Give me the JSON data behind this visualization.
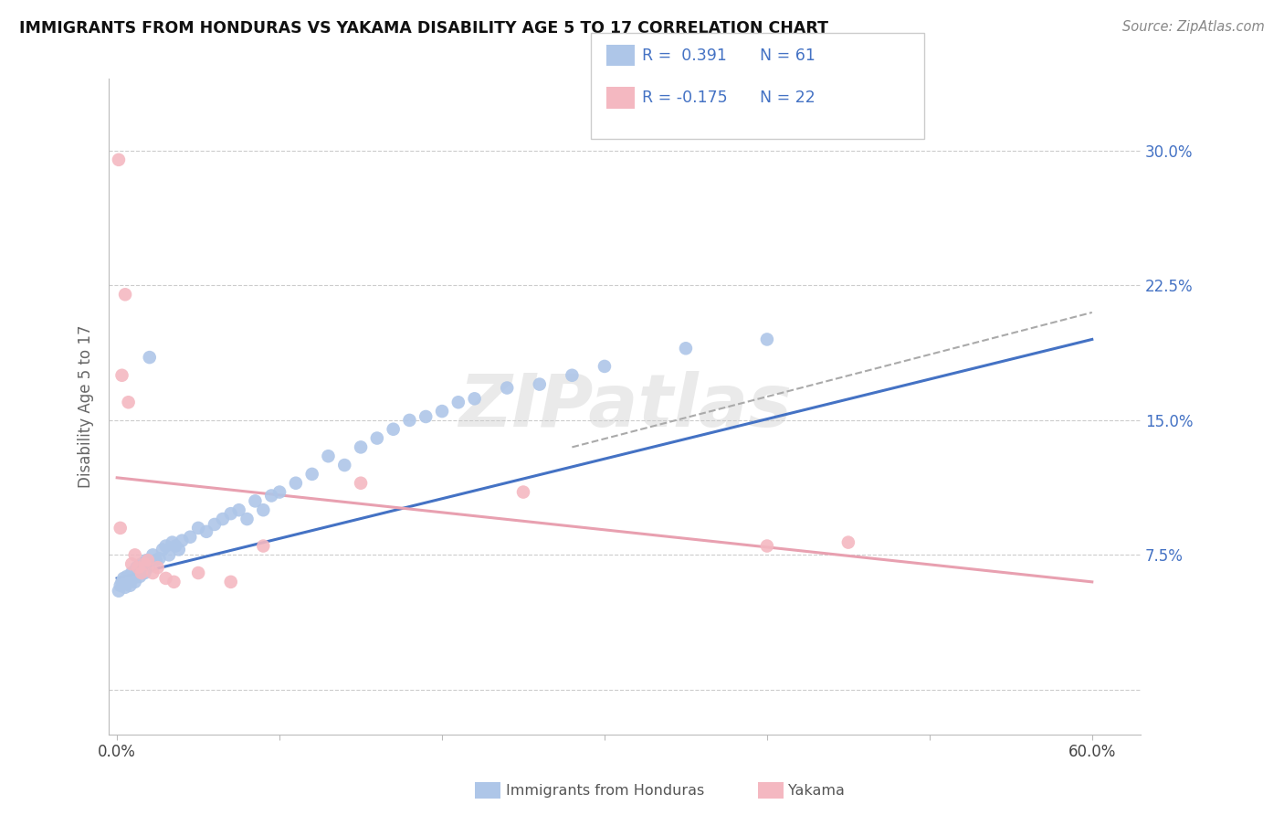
{
  "title": "IMMIGRANTS FROM HONDURAS VS YAKAMA DISABILITY AGE 5 TO 17 CORRELATION CHART",
  "source_text": "Source: ZipAtlas.com",
  "ylabel": "Disability Age 5 to 17",
  "blue_color": "#4472c4",
  "pink_color": "#e8a0b0",
  "blue_scatter_color": "#aec6e8",
  "pink_scatter_color": "#f4b8c1",
  "trend_blue_color": "#4472c4",
  "trend_pink_color": "#e8a0b0",
  "trend_gray_color": "#aaaaaa",
  "legend_entries": [
    {
      "label_r": "R =  0.391",
      "label_n": "N = 61",
      "color": "#aec6e8"
    },
    {
      "label_r": "R = -0.175",
      "label_n": "N = 22",
      "color": "#f4b8c1"
    }
  ],
  "legend_label_bottom": [
    "Immigrants from Honduras",
    "Yakama"
  ],
  "x_tick_positions": [
    0.0,
    0.1,
    0.2,
    0.3,
    0.4,
    0.5,
    0.6
  ],
  "x_tick_labels": [
    "0.0%",
    "",
    "",
    "",
    "",
    "",
    "60.0%"
  ],
  "y_tick_positions": [
    0.0,
    0.075,
    0.15,
    0.225,
    0.3
  ],
  "y_tick_labels": [
    "",
    "7.5%",
    "15.0%",
    "22.5%",
    "30.0%"
  ],
  "xlim": [
    -0.005,
    0.63
  ],
  "ylim": [
    -0.025,
    0.34
  ],
  "blue_points_x": [
    0.001,
    0.002,
    0.003,
    0.004,
    0.005,
    0.006,
    0.007,
    0.008,
    0.009,
    0.01,
    0.011,
    0.012,
    0.013,
    0.014,
    0.015,
    0.016,
    0.017,
    0.018,
    0.019,
    0.02,
    0.022,
    0.024,
    0.026,
    0.028,
    0.03,
    0.032,
    0.034,
    0.036,
    0.038,
    0.04,
    0.045,
    0.05,
    0.055,
    0.06,
    0.065,
    0.07,
    0.075,
    0.08,
    0.085,
    0.09,
    0.095,
    0.1,
    0.11,
    0.12,
    0.13,
    0.14,
    0.15,
    0.16,
    0.17,
    0.18,
    0.19,
    0.2,
    0.21,
    0.22,
    0.24,
    0.26,
    0.28,
    0.3,
    0.35,
    0.4,
    0.02
  ],
  "blue_points_y": [
    0.055,
    0.058,
    0.06,
    0.062,
    0.057,
    0.063,
    0.06,
    0.058,
    0.065,
    0.062,
    0.06,
    0.068,
    0.065,
    0.063,
    0.07,
    0.067,
    0.065,
    0.072,
    0.068,
    0.07,
    0.075,
    0.072,
    0.073,
    0.078,
    0.08,
    0.075,
    0.082,
    0.08,
    0.078,
    0.083,
    0.085,
    0.09,
    0.088,
    0.092,
    0.095,
    0.098,
    0.1,
    0.095,
    0.105,
    0.1,
    0.108,
    0.11,
    0.115,
    0.12,
    0.13,
    0.125,
    0.135,
    0.14,
    0.145,
    0.15,
    0.152,
    0.155,
    0.16,
    0.162,
    0.168,
    0.17,
    0.175,
    0.18,
    0.19,
    0.195,
    0.185
  ],
  "pink_points_x": [
    0.001,
    0.003,
    0.005,
    0.007,
    0.009,
    0.011,
    0.013,
    0.015,
    0.017,
    0.019,
    0.022,
    0.025,
    0.03,
    0.035,
    0.05,
    0.07,
    0.09,
    0.15,
    0.25,
    0.4,
    0.45,
    0.002
  ],
  "pink_points_y": [
    0.295,
    0.175,
    0.22,
    0.16,
    0.07,
    0.075,
    0.068,
    0.065,
    0.07,
    0.072,
    0.065,
    0.068,
    0.062,
    0.06,
    0.065,
    0.06,
    0.08,
    0.115,
    0.11,
    0.08,
    0.082,
    0.09
  ],
  "blue_trend_x": [
    0.0,
    0.6
  ],
  "blue_trend_y": [
    0.062,
    0.195
  ],
  "pink_trend_x": [
    0.0,
    0.6
  ],
  "pink_trend_y": [
    0.118,
    0.06
  ],
  "gray_trend_x": [
    0.28,
    0.6
  ],
  "gray_trend_y": [
    0.135,
    0.21
  ]
}
